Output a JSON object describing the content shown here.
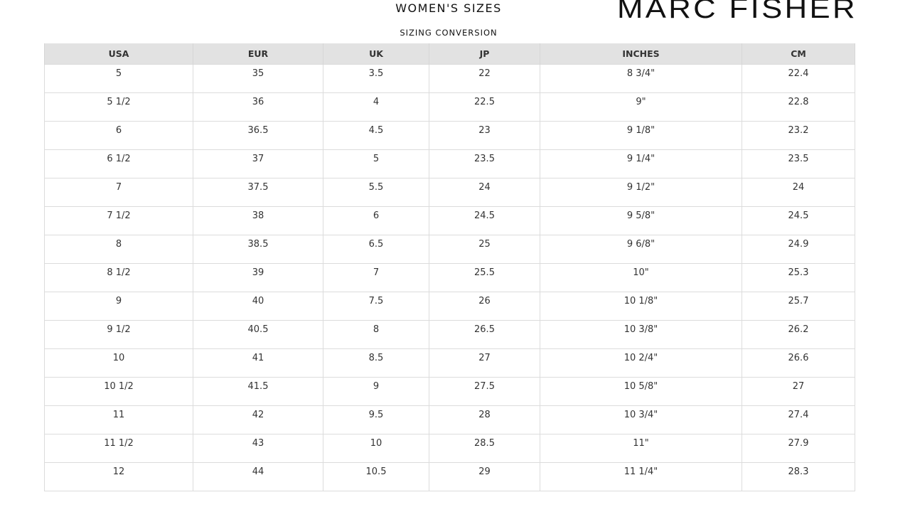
{
  "header": {
    "title": "WOMEN'S SIZES",
    "subtitle": "SIZING CONVERSION",
    "brand": "MARC FISHER"
  },
  "table": {
    "columns": [
      "USA",
      "EUR",
      "UK",
      "JP",
      "INCHES",
      "CM"
    ],
    "rows": [
      [
        "5",
        "35",
        "3.5",
        "22",
        "8 3/4\"",
        "22.4"
      ],
      [
        "5 1/2",
        "36",
        "4",
        "22.5",
        "9\"",
        "22.8"
      ],
      [
        "6",
        "36.5",
        "4.5",
        "23",
        "9 1/8\"",
        "23.2"
      ],
      [
        "6 1/2",
        "37",
        "5",
        "23.5",
        "9 1/4\"",
        "23.5"
      ],
      [
        "7",
        "37.5",
        "5.5",
        "24",
        "9 1/2\"",
        "24"
      ],
      [
        "7 1/2",
        "38",
        "6",
        "24.5",
        "9 5/8\"",
        "24.5"
      ],
      [
        "8",
        "38.5",
        "6.5",
        "25",
        "9 6/8\"",
        "24.9"
      ],
      [
        "8 1/2",
        "39",
        "7",
        "25.5",
        "10\"",
        "25.3"
      ],
      [
        "9",
        "40",
        "7.5",
        "26",
        "10 1/8\"",
        "25.7"
      ],
      [
        "9 1/2",
        "40.5",
        "8",
        "26.5",
        "10 3/8\"",
        "26.2"
      ],
      [
        "10",
        "41",
        "8.5",
        "27",
        "10 2/4\"",
        "26.6"
      ],
      [
        "10 1/2",
        "41.5",
        "9",
        "27.5",
        "10 5/8\"",
        "27"
      ],
      [
        "11",
        "42",
        "9.5",
        "28",
        "10 3/4\"",
        "27.4"
      ],
      [
        "11 1/2",
        "43",
        "10",
        "28.5",
        "11\"",
        "27.9"
      ],
      [
        "12",
        "44",
        "10.5",
        "29",
        "11 1/4\"",
        "28.3"
      ]
    ]
  }
}
